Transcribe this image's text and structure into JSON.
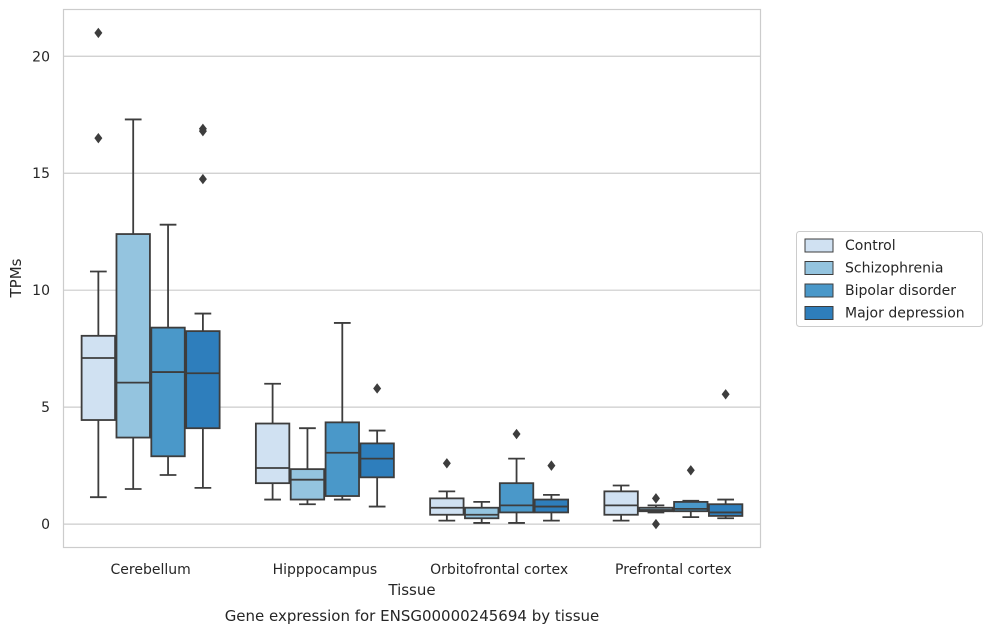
{
  "chart_data": {
    "type": "box",
    "title": "",
    "caption": "Gene expression for ENSG00000245694 by tissue",
    "xlabel": "Tissue",
    "ylabel": "TPMs",
    "ylim": [
      -1,
      22
    ],
    "yticks": [
      0,
      5,
      10,
      15,
      20
    ],
    "grid": "horizontal",
    "legend_position": "right",
    "categories": [
      "Cerebellum",
      "Hipppocampus",
      "Orbitofrontal cortex",
      "Prefrontal cortex"
    ],
    "series": [
      {
        "name": "Control",
        "color": "#d0e1f2",
        "boxes": [
          {
            "min": 1.15,
            "q1": 4.45,
            "median": 7.1,
            "q3": 8.05,
            "max": 10.8,
            "outliers": [
              21.0,
              16.5
            ]
          },
          {
            "min": 1.05,
            "q1": 1.75,
            "median": 2.4,
            "q3": 4.3,
            "max": 6.0,
            "outliers": []
          },
          {
            "min": 0.15,
            "q1": 0.4,
            "median": 0.7,
            "q3": 1.1,
            "max": 1.4,
            "outliers": [
              2.6
            ]
          },
          {
            "min": 0.15,
            "q1": 0.4,
            "median": 0.8,
            "q3": 1.4,
            "max": 1.65,
            "outliers": []
          }
        ]
      },
      {
        "name": "Schizophrenia",
        "color": "#94c4df",
        "boxes": [
          {
            "min": 1.5,
            "q1": 3.7,
            "median": 6.05,
            "q3": 12.4,
            "max": 17.3,
            "outliers": []
          },
          {
            "min": 0.85,
            "q1": 1.05,
            "median": 1.9,
            "q3": 2.35,
            "max": 4.1,
            "outliers": []
          },
          {
            "min": 0.05,
            "q1": 0.25,
            "median": 0.4,
            "q3": 0.7,
            "max": 0.95,
            "outliers": []
          },
          {
            "min": 0.5,
            "q1": 0.55,
            "median": 0.6,
            "q3": 0.7,
            "max": 0.8,
            "outliers": [
              0.0,
              1.1
            ]
          }
        ]
      },
      {
        "name": "Bipolar disorder",
        "color": "#4a98c9",
        "boxes": [
          {
            "min": 2.1,
            "q1": 2.9,
            "median": 6.5,
            "q3": 8.4,
            "max": 12.8,
            "outliers": []
          },
          {
            "min": 1.05,
            "q1": 1.2,
            "median": 3.05,
            "q3": 4.35,
            "max": 8.6,
            "outliers": []
          },
          {
            "min": 0.05,
            "q1": 0.5,
            "median": 0.8,
            "q3": 1.75,
            "max": 2.8,
            "outliers": [
              3.85
            ]
          },
          {
            "min": 0.3,
            "q1": 0.55,
            "median": 0.65,
            "q3": 0.95,
            "max": 1.0,
            "outliers": [
              2.3
            ]
          }
        ]
      },
      {
        "name": "Major depression",
        "color": "#2e7ebc",
        "boxes": [
          {
            "min": 1.55,
            "q1": 4.1,
            "median": 6.45,
            "q3": 8.25,
            "max": 9.0,
            "outliers": [
              16.9,
              16.8,
              14.75
            ]
          },
          {
            "min": 0.75,
            "q1": 2.0,
            "median": 2.8,
            "q3": 3.45,
            "max": 4.0,
            "outliers": [
              5.8
            ]
          },
          {
            "min": 0.15,
            "q1": 0.5,
            "median": 0.75,
            "q3": 1.05,
            "max": 1.25,
            "outliers": [
              2.5
            ]
          },
          {
            "min": 0.25,
            "q1": 0.35,
            "median": 0.5,
            "q3": 0.85,
            "max": 1.05,
            "outliers": [
              5.55
            ]
          }
        ]
      }
    ]
  }
}
